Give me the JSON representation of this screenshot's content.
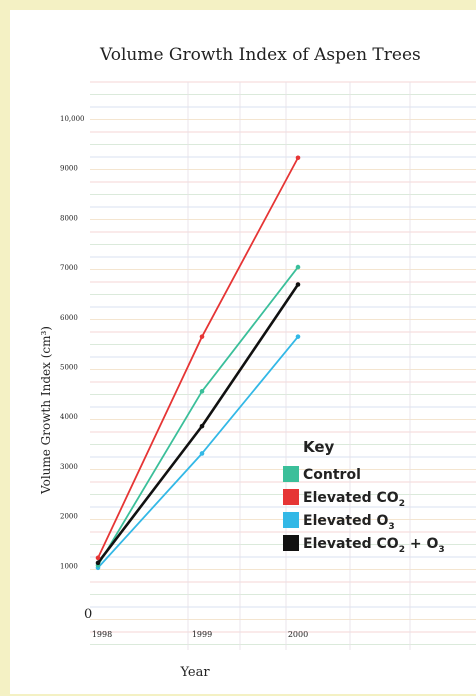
{
  "chart_data": {
    "type": "line",
    "title": "Volume Growth Index of Aspen Trees",
    "xlabel": "Year",
    "ylabel": "Volume Growth Index (cm³)",
    "categories": [
      "1998",
      "1999",
      "2000"
    ],
    "y_ticks": [
      "0",
      "1000",
      "2000",
      "3000",
      "4000",
      "5000",
      "6000",
      "7000",
      "8000",
      "9000",
      "10,000"
    ],
    "ylim": [
      0,
      10000
    ],
    "series": [
      {
        "name": "Control",
        "color": "#3bbf9a",
        "values": [
          1000,
          4500,
          7000
        ]
      },
      {
        "name": "Elevated CO2",
        "color": "#e63535",
        "values": [
          1150,
          5600,
          9200
        ]
      },
      {
        "name": "Elevated O3",
        "color": "#33b8e6",
        "values": [
          950,
          3250,
          5600
        ]
      },
      {
        "name": "Elevated CO2 + O3",
        "color": "#111111",
        "values": [
          1050,
          3800,
          6650
        ]
      }
    ],
    "legend": {
      "title": "Key",
      "position": "right",
      "entries": [
        {
          "main": "Control",
          "sub": "",
          "suffix": ""
        },
        {
          "main": "Elevated CO",
          "sub": "2",
          "suffix": ""
        },
        {
          "main": "Elevated O",
          "sub": "3",
          "suffix": ""
        },
        {
          "main": "Elevated CO",
          "sub": "2",
          "suffix": " + O",
          "sub2": "3"
        }
      ]
    },
    "grid": true
  }
}
